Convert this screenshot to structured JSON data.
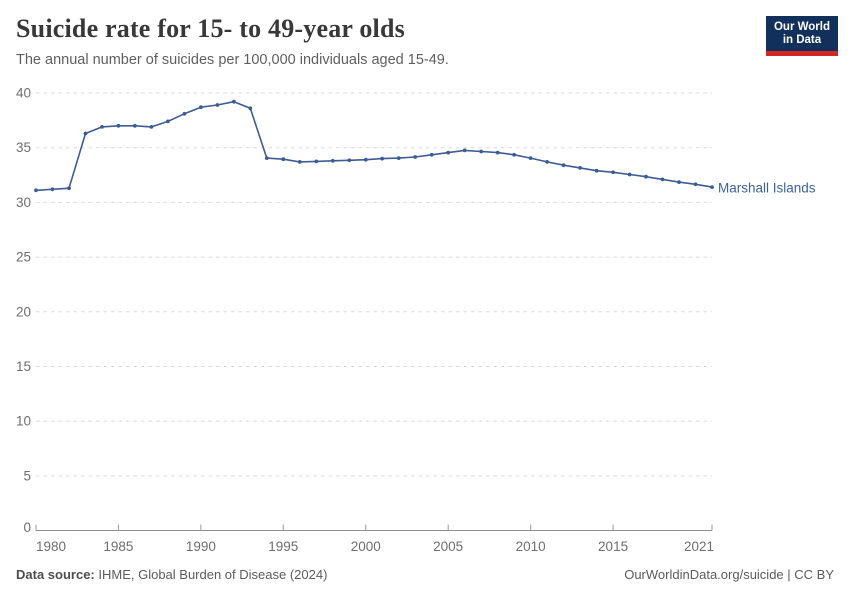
{
  "header": {
    "title": "Suicide rate for 15- to 49-year olds",
    "subtitle": "The annual number of suicides per 100,000 individuals aged 15-49.",
    "logo": {
      "line1": "Our World",
      "line2": "in Data"
    }
  },
  "chart_data": {
    "type": "line",
    "title": "Suicide rate for 15- to 49-year olds",
    "subtitle": "The annual number of suicides per 100,000 individuals aged 15-49.",
    "xlabel": "",
    "ylabel": "",
    "xlim": [
      1980,
      2021
    ],
    "ylim": [
      0,
      40
    ],
    "x_ticks": [
      1980,
      1985,
      1990,
      1995,
      2000,
      2005,
      2010,
      2015,
      2021
    ],
    "y_ticks": [
      0,
      5,
      10,
      15,
      20,
      25,
      30,
      35,
      40
    ],
    "grid": "horizontal-dashed",
    "legend_position": "end-of-line-label",
    "series": [
      {
        "name": "Marshall Islands",
        "color": "#3d5c96",
        "label_color": "#3d639e",
        "x": [
          1980,
          1981,
          1982,
          1983,
          1984,
          1985,
          1986,
          1987,
          1988,
          1989,
          1990,
          1991,
          1992,
          1993,
          1994,
          1995,
          1996,
          1997,
          1998,
          1999,
          2000,
          2001,
          2002,
          2003,
          2004,
          2005,
          2006,
          2007,
          2008,
          2009,
          2010,
          2011,
          2012,
          2013,
          2014,
          2015,
          2016,
          2017,
          2018,
          2019,
          2020,
          2021
        ],
        "values": [
          31.1,
          31.2,
          31.3,
          36.3,
          36.9,
          37.0,
          37.0,
          36.9,
          37.4,
          38.1,
          38.7,
          38.9,
          39.2,
          38.6,
          34.05,
          33.95,
          33.7,
          33.75,
          33.8,
          33.85,
          33.9,
          34.0,
          34.05,
          34.15,
          34.35,
          34.55,
          34.75,
          34.65,
          34.55,
          34.35,
          34.05,
          33.7,
          33.4,
          33.15,
          32.9,
          32.75,
          32.55,
          32.35,
          32.1,
          31.85,
          31.65,
          31.4
        ]
      }
    ],
    "colors": {
      "gridline": "#d9d9d9",
      "axis": "#8f8f8f",
      "tick_label": "#6e6e6e"
    }
  },
  "footer": {
    "source_label": "Data source:",
    "source_text": " IHME, Global Burden of Disease (2024)",
    "credit": "OurWorldinData.org/suicide | CC BY"
  }
}
